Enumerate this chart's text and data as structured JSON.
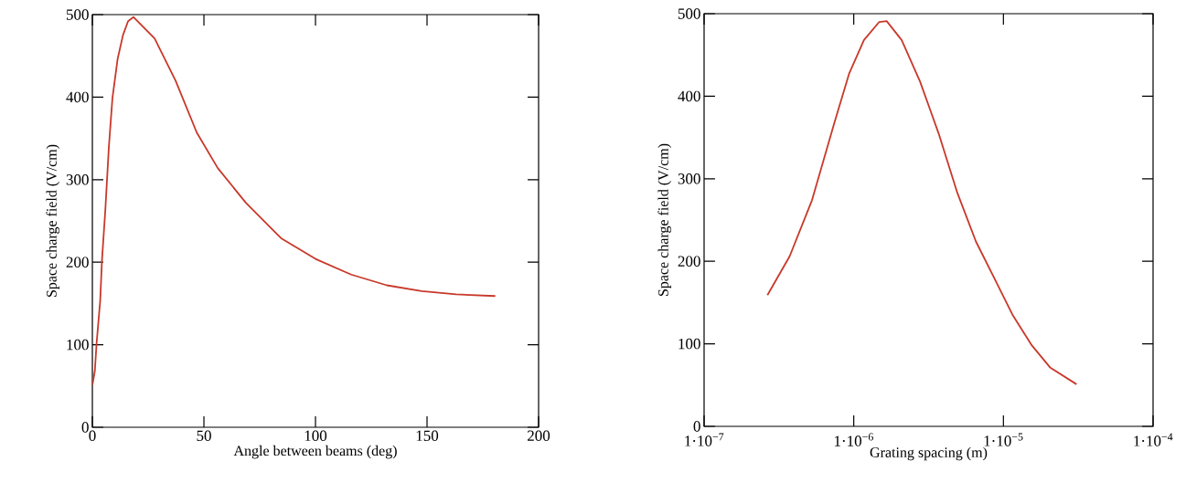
{
  "chart_data": [
    {
      "type": "line",
      "xlabel": "Angle between beams (deg)",
      "ylabel": "Space charge field (V/cm)",
      "color": "#c8382a",
      "x": [
        0,
        1.1,
        1.9,
        3.5,
        4.3,
        5.8,
        7.4,
        9,
        11.3,
        13.7,
        16,
        18.4,
        27.9,
        37.3,
        46.8,
        56.2,
        68.8,
        84.6,
        100,
        116,
        132,
        147.6,
        163,
        180.6
      ],
      "values": [
        51,
        68,
        102,
        153,
        202,
        263,
        340,
        399,
        446,
        475,
        492,
        497,
        471,
        420,
        357,
        314,
        272,
        229,
        204,
        185,
        172,
        165,
        161,
        159
      ],
      "xlim": [
        0,
        200
      ],
      "ylim": [
        0,
        500
      ],
      "xticks": [
        0,
        50,
        100,
        150,
        200
      ],
      "yticks": [
        0,
        100,
        200,
        300,
        400,
        500
      ]
    },
    {
      "type": "line",
      "xlabel": "Grating spacing (m)",
      "ylabel": "Space charge field (V/cm)",
      "color": "#c8382a",
      "log": "x",
      "x": [
        2.65e-07,
        3.73e-07,
        5.26e-07,
        7.43e-07,
        9.3e-07,
        1.17e-06,
        1.48e-06,
        1.66e-06,
        2.09e-06,
        2.77e-06,
        3.69e-06,
        4.92e-06,
        6.55e-06,
        8.72e-06,
        1.16e-05,
        1.55e-05,
        2.06e-05,
        3.08e-05
      ],
      "values": [
        159,
        206,
        274,
        368,
        427,
        468,
        490,
        491,
        468,
        418,
        355,
        283,
        224,
        179,
        134,
        98,
        71,
        51
      ],
      "xlim": [
        1e-07,
        0.0001
      ],
      "ylim": [
        0,
        500
      ],
      "xticks": [
        {
          "value": 1e-07,
          "label": "1·10$^{−7}$"
        },
        {
          "value": 1e-06,
          "label": "1·10$^{−6}$"
        },
        {
          "value": 1e-05,
          "label": "1·10$^{−5}$"
        },
        {
          "value": 0.0001,
          "label": "1·10$^{−4}$"
        }
      ],
      "yticks": [
        0,
        100,
        200,
        300,
        400,
        500
      ]
    }
  ]
}
